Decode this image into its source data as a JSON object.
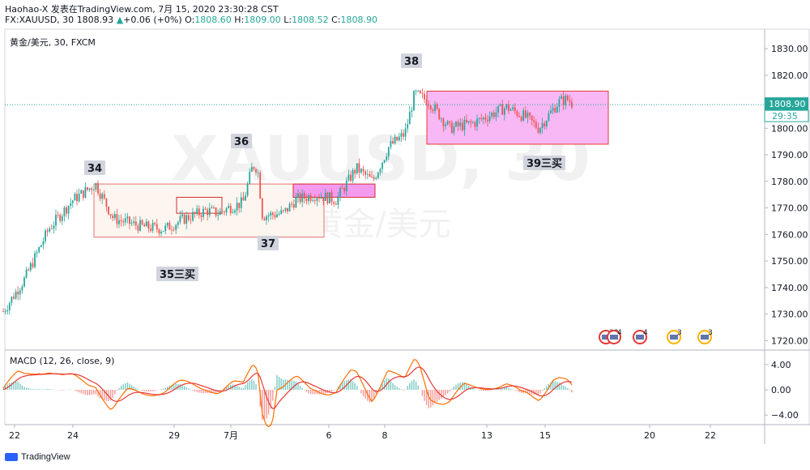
{
  "header": {
    "line1": "Haohao-X 发表在TradingView.com, 7月 15, 2020 23:30:28 CST",
    "symbol": "FX:XAUUSD, 30",
    "last": "1808.93",
    "change": "+0.06 (+0%)",
    "o_label": "O:",
    "o": "1808.60",
    "h_label": "H:",
    "h": "1809.00",
    "l_label": "L:",
    "l": "1808.52",
    "c_label": "C:",
    "c": "1808.90"
  },
  "chart_data": {
    "type": "candlestick",
    "instrument": "黄金/美元, 30, FXCM",
    "watermark_symbol": "XAUUSD, 30",
    "watermark_name": "黄金/美元",
    "price_axis": {
      "ticks": [
        1830,
        1820,
        1810,
        1800,
        1790,
        1780,
        1770,
        1760,
        1750,
        1740,
        1730,
        1720
      ],
      "tick_labels": [
        "1830.00",
        "1820.00",
        "1810.00",
        "1800.00",
        "1790.00",
        "1780.00",
        "1770.00",
        "1760.00",
        "1750.00",
        "1740.00",
        "1730.00",
        "1720.00"
      ]
    },
    "last_price_label": "1808.90",
    "countdown_label": "29:35",
    "last_price": 1808.9,
    "x_axis": {
      "tick_labels": [
        "22",
        "24",
        "29",
        "7月",
        "6",
        "8",
        "13",
        "15",
        "20",
        "22"
      ]
    },
    "price_path": [
      [
        1731,
        1728,
        1734
      ],
      [
        1743,
        1738,
        1752
      ],
      [
        1762,
        1755,
        1770
      ],
      [
        1773,
        1766,
        1779
      ],
      [
        1779,
        1758,
        1780
      ],
      [
        1766,
        1760,
        1771
      ],
      [
        1763,
        1754,
        1770
      ],
      [
        1762,
        1746,
        1768
      ],
      [
        1766,
        1758,
        1772
      ],
      [
        1769,
        1764,
        1775
      ],
      [
        1768,
        1761,
        1774
      ],
      [
        1770,
        1765,
        1774
      ],
      [
        1772,
        1768,
        1778
      ],
      [
        1786,
        1780,
        1790
      ],
      [
        1785,
        1780,
        1789
      ],
      [
        1767,
        1762,
        1774
      ],
      [
        1768,
        1757,
        1773
      ],
      [
        1773,
        1767,
        1778
      ],
      [
        1775,
        1772,
        1780
      ],
      [
        1773,
        1770,
        1777
      ],
      [
        1785,
        1780,
        1787
      ],
      [
        1780,
        1776,
        1785
      ],
      [
        1793,
        1789,
        1797
      ],
      [
        1798,
        1793,
        1808
      ],
      [
        1813,
        1807,
        1818
      ],
      [
        1810,
        1806,
        1815
      ],
      [
        1800,
        1795,
        1812
      ],
      [
        1802,
        1797,
        1810
      ],
      [
        1808,
        1796,
        1813
      ],
      [
        1804,
        1798,
        1812
      ],
      [
        1800,
        1790,
        1806
      ],
      [
        1810,
        1805,
        1815
      ],
      [
        1811,
        1806,
        1815
      ],
      [
        1809,
        1804,
        1813
      ]
    ],
    "zones": [
      {
        "name": "zone-34-37",
        "from": 1759,
        "to": 1779,
        "fill": "#fdf5ef",
        "stroke": "#e57373"
      },
      {
        "name": "zone-inner",
        "from": 1768,
        "to": 1774,
        "fill": "#fdf5ef",
        "stroke": "#d32f2f"
      },
      {
        "name": "zone-37-38",
        "from": 1774,
        "to": 1779,
        "fill": "#f49bf0",
        "stroke": "#d32f2f"
      },
      {
        "name": "zone-39",
        "from": 1794,
        "to": 1814,
        "fill": "#f7b8f5",
        "stroke": "#e53935"
      }
    ],
    "annotations": [
      {
        "text": "34",
        "price": 1784
      },
      {
        "text": "35三买",
        "price": 1743
      },
      {
        "text": "36",
        "price": 1795
      },
      {
        "text": "37",
        "price": 1755
      },
      {
        "text": "38",
        "price": 1826
      },
      {
        "text": "39三买",
        "price": 1788
      }
    ],
    "event_badges": [
      "38",
      "4",
      "4",
      "3",
      "3"
    ],
    "macd": {
      "label": "MACD (12, 26, close, 9)",
      "ticks": [
        4,
        0,
        -4
      ],
      "tick_labels": [
        "4.00",
        "0.00",
        "−4.00"
      ]
    },
    "colors": {
      "up": "#26a69a",
      "down": "#ef5350",
      "macd_line": "#ff6d00",
      "signal_line": "#e53935",
      "last_price_bg": "#26a69a",
      "dotted_line": "#26a69a"
    }
  },
  "footer": {
    "brand": "TradingView"
  }
}
